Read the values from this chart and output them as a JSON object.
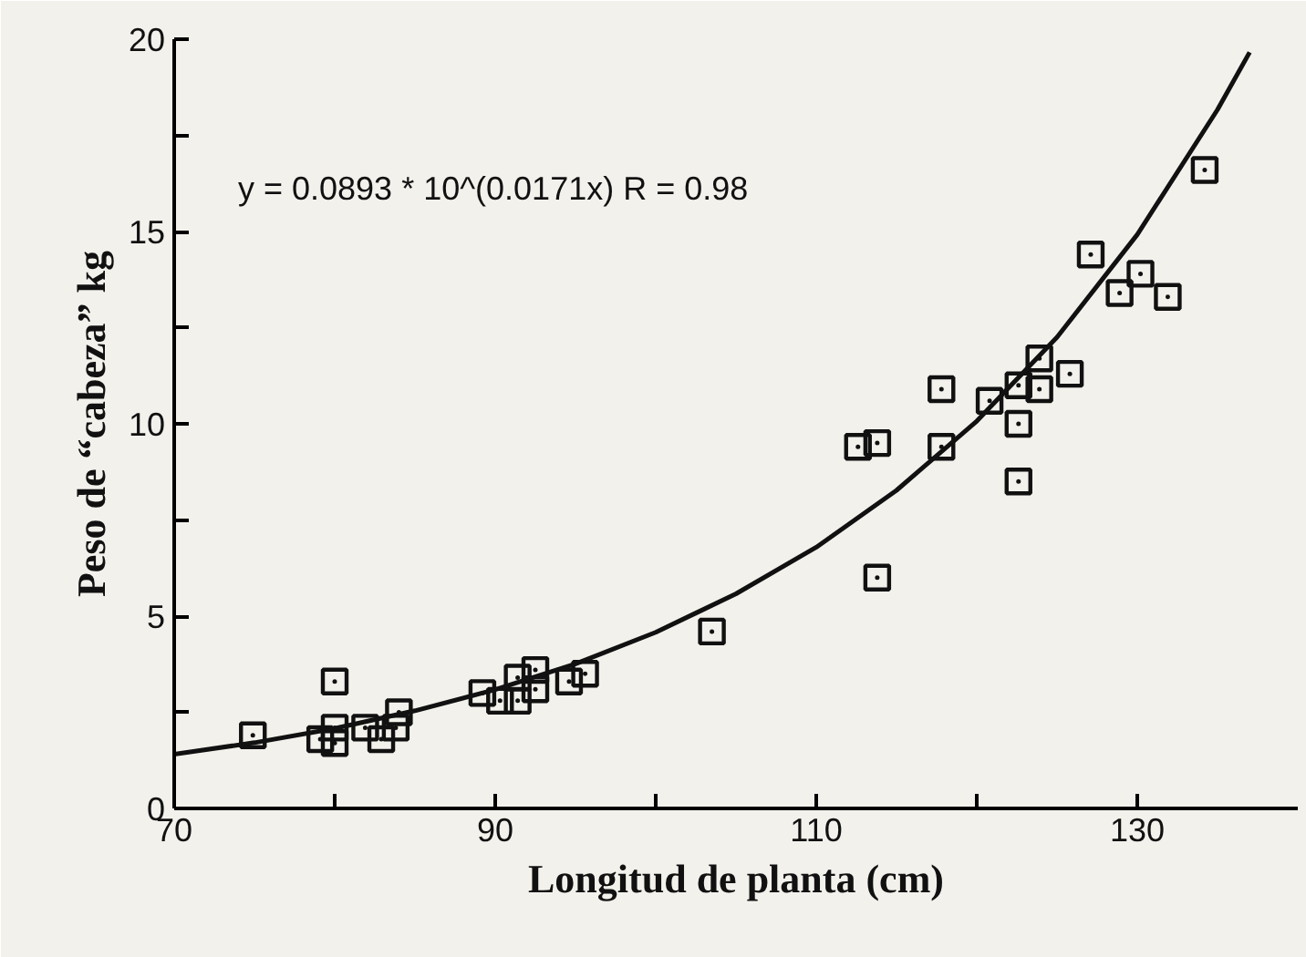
{
  "chart_data": {
    "type": "scatter",
    "xlabel": "Longitud de planta (cm)",
    "ylabel": "Peso de “cabeza” kg",
    "annotations": [
      "y = 0.0893 * 10^(0.0171x)   R = 0.98"
    ],
    "xlim": [
      70,
      140
    ],
    "ylim": [
      0,
      20
    ],
    "xticks": [
      70,
      {
        "value": 80,
        "label": null
      },
      90,
      {
        "value": 100,
        "label": null
      },
      110,
      {
        "value": 120,
        "label": null
      },
      130
    ],
    "yticks": [
      0,
      {
        "value": 2.5,
        "label": null
      },
      5,
      {
        "value": 7.5,
        "label": null
      },
      10,
      {
        "value": 12.5,
        "label": null
      },
      15,
      {
        "value": 17.5,
        "label": null
      },
      20
    ],
    "grid": false,
    "marker": "square",
    "series": [
      {
        "color": "#111111",
        "x": [
          74.9,
          80.0,
          79.1,
          80.0,
          80.0,
          81.9,
          82.9,
          83.8,
          84.0,
          89.2,
          90.3,
          91.4,
          91.4,
          92.5,
          92.5,
          94.6,
          95.6,
          103.5,
          112.6,
          113.8,
          113.8,
          117.8,
          117.8,
          120.8,
          122.6,
          122.6,
          122.6,
          123.9,
          123.9,
          125.8,
          127.1,
          128.9,
          130.2,
          131.9,
          134.2
        ],
        "values": [
          1.9,
          3.3,
          1.8,
          2.1,
          1.7,
          2.1,
          1.8,
          2.1,
          2.5,
          3.0,
          2.8,
          3.4,
          2.8,
          3.6,
          3.1,
          3.3,
          3.5,
          4.6,
          9.4,
          9.5,
          6.0,
          10.9,
          9.4,
          10.6,
          11.0,
          10.0,
          8.5,
          10.9,
          11.7,
          11.3,
          14.4,
          13.4,
          13.9,
          13.3,
          16.6
        ]
      },
      {
        "type": "line",
        "color": "#111111",
        "line_style": "solid",
        "marker": "none",
        "x": [
          70,
          75,
          80,
          85,
          90,
          95,
          100,
          105,
          110,
          115,
          120,
          125,
          130,
          135,
          137
        ],
        "values": [
          1.41,
          1.71,
          2.08,
          2.54,
          3.09,
          3.76,
          4.58,
          5.58,
          6.79,
          8.27,
          10.07,
          12.25,
          14.92,
          18.17,
          19.66
        ]
      }
    ]
  }
}
